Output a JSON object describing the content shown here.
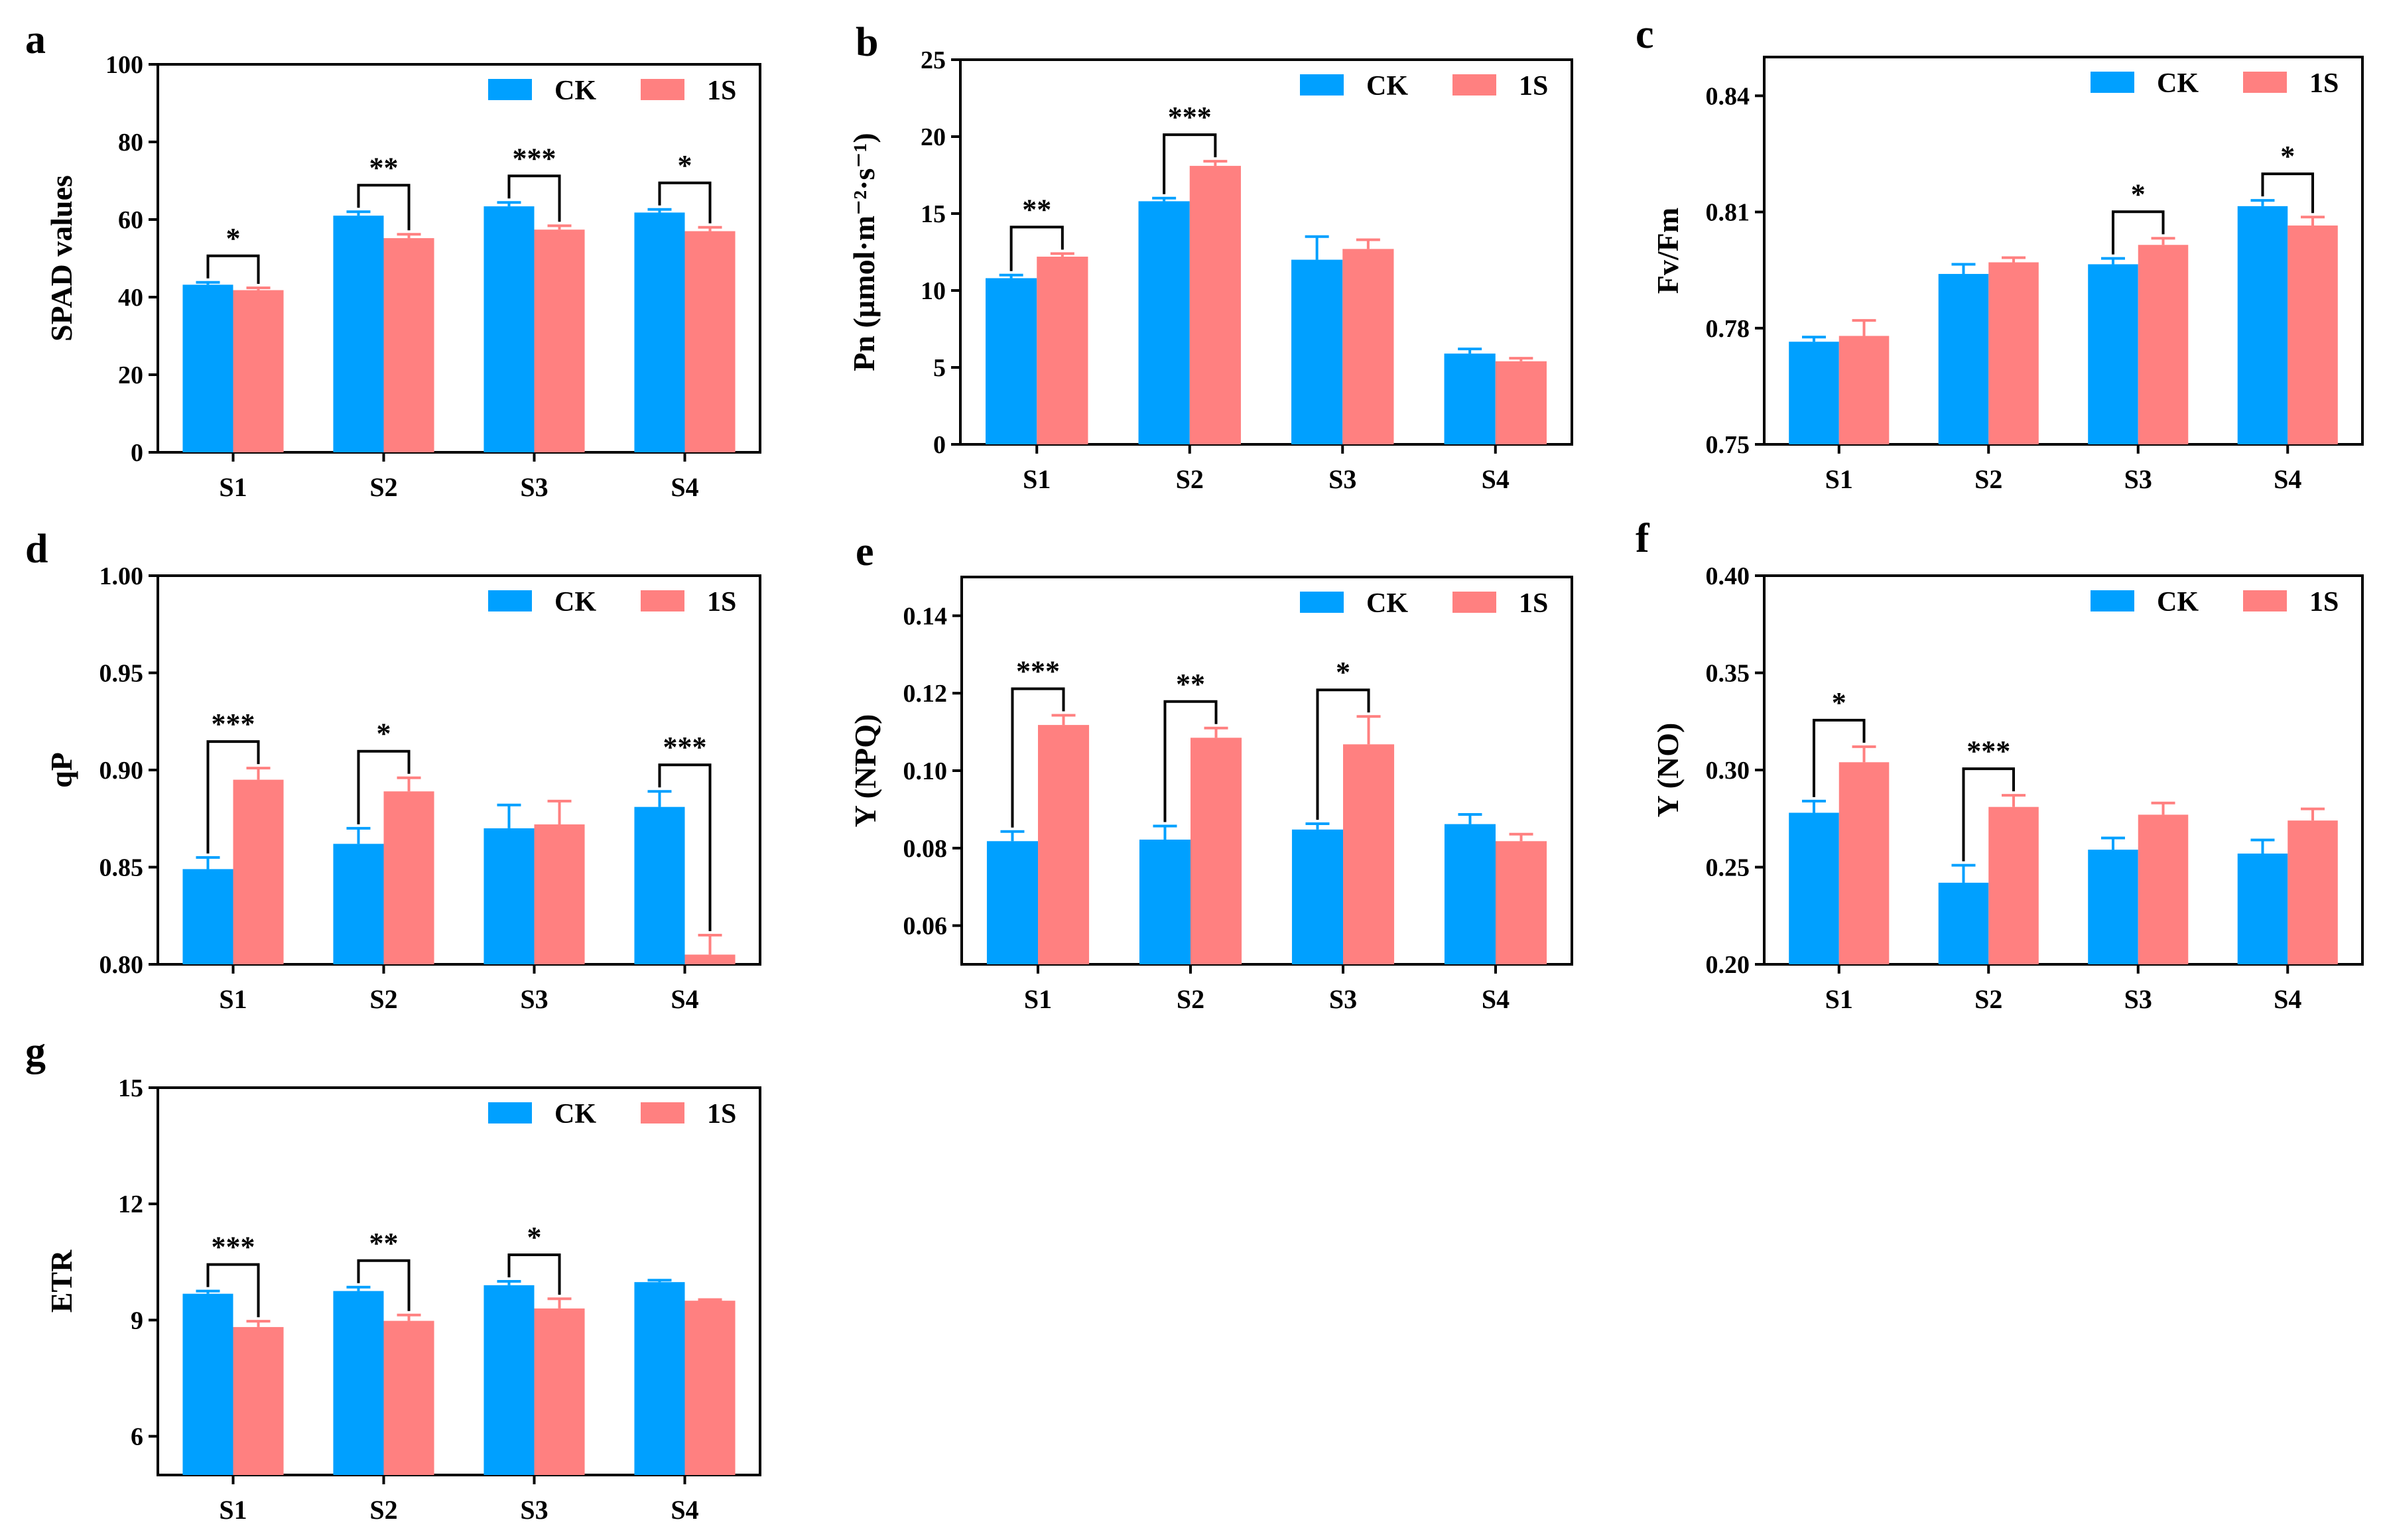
{
  "colors": {
    "CK": "#00A0FF",
    "1S": "#FF8080",
    "axis": "#000000"
  },
  "chart_data": [
    {
      "panel": "a",
      "type": "bar",
      "ylabel": "SPAD values",
      "categories": [
        "S1",
        "S2",
        "S3",
        "S4"
      ],
      "ylim": [
        0,
        100
      ],
      "yticks": [
        0,
        20,
        40,
        60,
        80,
        100
      ],
      "ytick_labels": [
        "0",
        "20",
        "40",
        "60",
        "80",
        "100"
      ],
      "series": [
        {
          "name": "CK",
          "values": [
            43.2,
            61.0,
            63.4,
            61.8
          ],
          "errors": [
            0.6,
            1.0,
            1.0,
            0.8
          ]
        },
        {
          "name": "1S",
          "values": [
            41.8,
            55.2,
            57.4,
            57.0
          ],
          "errors": [
            0.6,
            1.0,
            1.0,
            1.0
          ]
        }
      ],
      "significance": [
        "*",
        "**",
        "***",
        "*"
      ],
      "legend": [
        "CK",
        "1S"
      ],
      "legend_position": "top-right"
    },
    {
      "panel": "b",
      "type": "bar",
      "ylabel": "Pn (µmol·m⁻²·s⁻¹)",
      "categories": [
        "S1",
        "S2",
        "S3",
        "S4"
      ],
      "ylim": [
        0,
        25
      ],
      "yticks": [
        0,
        5,
        10,
        15,
        20,
        25
      ],
      "ytick_labels": [
        "0",
        "5",
        "10",
        "15",
        "20",
        "25"
      ],
      "series": [
        {
          "name": "CK",
          "values": [
            10.8,
            15.8,
            12.0,
            5.9
          ],
          "errors": [
            0.2,
            0.2,
            1.5,
            0.3
          ]
        },
        {
          "name": "1S",
          "values": [
            12.2,
            18.1,
            12.7,
            5.4
          ],
          "errors": [
            0.2,
            0.3,
            0.6,
            0.2
          ]
        }
      ],
      "significance": [
        "**",
        "***",
        "",
        ""
      ],
      "legend": [
        "CK",
        "1S"
      ],
      "legend_position": "top-right"
    },
    {
      "panel": "c",
      "type": "bar",
      "ylabel": "Fv/Fm",
      "categories": [
        "S1",
        "S2",
        "S3",
        "S4"
      ],
      "ylim": [
        0.75,
        0.85
      ],
      "yticks": [
        0.75,
        0.78,
        0.81,
        0.84
      ],
      "ytick_labels": [
        "0.75",
        "0.78",
        "0.81",
        "0.84"
      ],
      "series": [
        {
          "name": "CK",
          "values": [
            0.7765,
            0.794,
            0.7965,
            0.8115
          ],
          "errors": [
            0.0012,
            0.0025,
            0.0015,
            0.0015
          ]
        },
        {
          "name": "1S",
          "values": [
            0.778,
            0.797,
            0.8015,
            0.8065
          ],
          "errors": [
            0.004,
            0.0012,
            0.0017,
            0.0022
          ]
        }
      ],
      "significance": [
        "",
        "",
        "*",
        "*"
      ],
      "legend": [
        "CK",
        "1S"
      ],
      "legend_position": "top-right"
    },
    {
      "panel": "d",
      "type": "bar",
      "ylabel": "qP",
      "categories": [
        "S1",
        "S2",
        "S3",
        "S4"
      ],
      "ylim": [
        0.8,
        1.0
      ],
      "yticks": [
        0.8,
        0.85,
        0.9,
        0.95,
        1.0
      ],
      "ytick_labels": [
        "0.80",
        "0.85",
        "0.90",
        "0.95",
        "1.00"
      ],
      "series": [
        {
          "name": "CK",
          "values": [
            0.849,
            0.862,
            0.87,
            0.881
          ],
          "errors": [
            0.006,
            0.008,
            0.012,
            0.008
          ]
        },
        {
          "name": "1S",
          "values": [
            0.895,
            0.889,
            0.872,
            0.805
          ],
          "errors": [
            0.006,
            0.007,
            0.012,
            0.01
          ]
        }
      ],
      "significance": [
        "***",
        "*",
        "",
        "***"
      ],
      "legend": [
        "CK",
        "1S"
      ],
      "legend_position": "top-right"
    },
    {
      "panel": "e",
      "type": "bar",
      "ylabel": "Y (NPQ)",
      "categories": [
        "S1",
        "S2",
        "S3",
        "S4"
      ],
      "ylim": [
        0.05,
        0.15
      ],
      "yticks": [
        0.06,
        0.08,
        0.1,
        0.12,
        0.14
      ],
      "ytick_labels": [
        "0.06",
        "0.08",
        "0.10",
        "0.12",
        "0.14"
      ],
      "series": [
        {
          "name": "CK",
          "values": [
            0.0818,
            0.0822,
            0.0848,
            0.0862
          ],
          "errors": [
            0.0025,
            0.0035,
            0.0015,
            0.0025
          ]
        },
        {
          "name": "1S",
          "values": [
            0.1118,
            0.1085,
            0.1068,
            0.0818
          ],
          "errors": [
            0.0025,
            0.0025,
            0.0072,
            0.0018
          ]
        }
      ],
      "significance": [
        "***",
        "**",
        "*",
        ""
      ],
      "legend": [
        "CK",
        "1S"
      ],
      "legend_position": "top-right"
    },
    {
      "panel": "f",
      "type": "bar",
      "ylabel": "Y (NO)",
      "categories": [
        "S1",
        "S2",
        "S3",
        "S4"
      ],
      "ylim": [
        0.2,
        0.4
      ],
      "yticks": [
        0.2,
        0.25,
        0.3,
        0.35,
        0.4
      ],
      "ytick_labels": [
        "0.20",
        "0.25",
        "0.30",
        "0.35",
        "0.40"
      ],
      "series": [
        {
          "name": "CK",
          "values": [
            0.278,
            0.242,
            0.259,
            0.257
          ],
          "errors": [
            0.006,
            0.009,
            0.006,
            0.007
          ]
        },
        {
          "name": "1S",
          "values": [
            0.304,
            0.281,
            0.277,
            0.274
          ],
          "errors": [
            0.008,
            0.006,
            0.006,
            0.006
          ]
        }
      ],
      "significance": [
        "*",
        "***",
        "",
        ""
      ],
      "legend": [
        "CK",
        "1S"
      ],
      "legend_position": "top-right"
    },
    {
      "panel": "g",
      "type": "bar",
      "ylabel": "ETR",
      "categories": [
        "S1",
        "S2",
        "S3",
        "S4"
      ],
      "ylim": [
        5,
        15
      ],
      "yticks": [
        6,
        9,
        12,
        15
      ],
      "ytick_labels": [
        "6",
        "9",
        "12",
        "15"
      ],
      "series": [
        {
          "name": "CK",
          "values": [
            9.68,
            9.75,
            9.9,
            9.98
          ],
          "errors": [
            0.07,
            0.1,
            0.1,
            0.05
          ]
        },
        {
          "name": "1S",
          "values": [
            8.82,
            8.98,
            9.3,
            9.5
          ],
          "errors": [
            0.15,
            0.15,
            0.25,
            0.03
          ]
        }
      ],
      "significance": [
        "***",
        "**",
        "*",
        ""
      ],
      "legend": [
        "CK",
        "1S"
      ],
      "legend_position": "top-right"
    }
  ]
}
